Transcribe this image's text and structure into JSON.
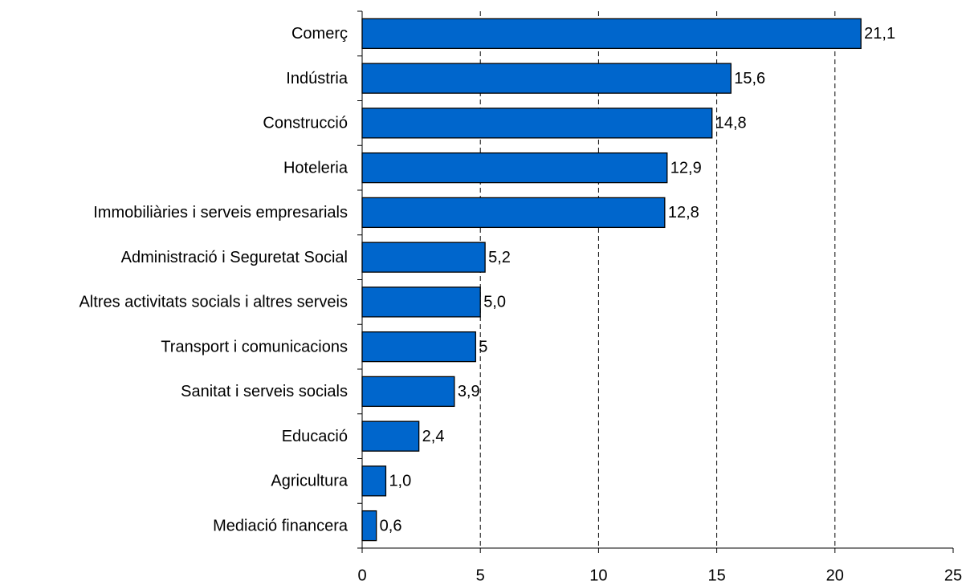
{
  "chart_data": {
    "type": "hbar",
    "categories": [
      "Comerç",
      "Indústria",
      "Construcció",
      "Hoteleria",
      "Immobiliàries i serveis empresarials",
      "Administració i Seguretat Social",
      "Altres activitats socials i altres serveis",
      "Transport i comunicacions",
      "Sanitat i serveis socials",
      "Educació",
      "Agricultura",
      "Mediació financera"
    ],
    "values": [
      21.1,
      15.6,
      14.8,
      12.9,
      12.8,
      5.2,
      5.0,
      4.8,
      3.9,
      2.4,
      1.0,
      0.6
    ],
    "value_labels": [
      "21,1",
      "15,6",
      "14,8",
      "12,9",
      "12,8",
      "5,2",
      "5,0",
      "5",
      "3,9",
      "2,4",
      "1,0",
      "0,6"
    ],
    "color": "#0066cc",
    "xlim": [
      0,
      25
    ],
    "xticks": [
      0,
      5,
      10,
      15,
      20,
      25
    ],
    "grid": true
  }
}
